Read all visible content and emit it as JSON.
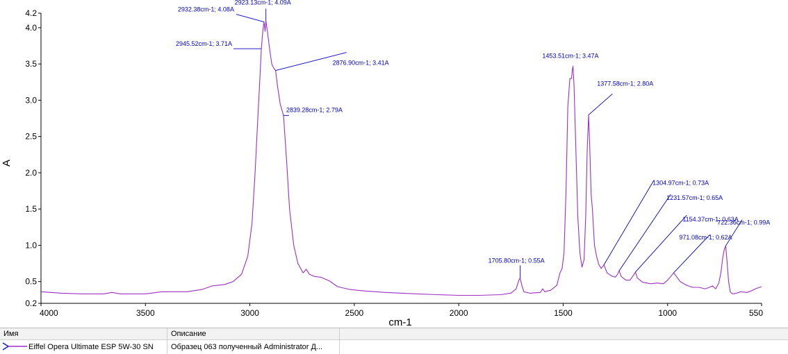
{
  "chart_data": {
    "type": "line",
    "xlabel": "cm-1",
    "ylabel": "A",
    "xlim": [
      4000,
      550
    ],
    "ylim": [
      0.2,
      4.2
    ],
    "x_ticks": [
      "4000",
      "3500",
      "3000",
      "2500",
      "2000",
      "1500",
      "1000",
      "550"
    ],
    "y_ticks": [
      "4.2",
      "4.0",
      "3.5",
      "3.0",
      "2.5",
      "2.0",
      "1.5",
      "1.0",
      "0.5",
      "0.2"
    ],
    "grid": false,
    "series": [
      {
        "name": "Eiffel Opera Ultimate ESP 5W-30 SN",
        "color": "#9d2fc4",
        "points": [
          [
            4000,
            0.36
          ],
          [
            3900,
            0.34
          ],
          [
            3800,
            0.33
          ],
          [
            3700,
            0.33
          ],
          [
            3660,
            0.35
          ],
          [
            3620,
            0.33
          ],
          [
            3500,
            0.33
          ],
          [
            3420,
            0.36
          ],
          [
            3300,
            0.36
          ],
          [
            3230,
            0.39
          ],
          [
            3180,
            0.44
          ],
          [
            3120,
            0.46
          ],
          [
            3080,
            0.5
          ],
          [
            3040,
            0.6
          ],
          [
            3010,
            0.85
          ],
          [
            2990,
            1.3
          ],
          [
            2975,
            2.0
          ],
          [
            2962,
            2.75
          ],
          [
            2952,
            3.3
          ],
          [
            2945,
            3.71
          ],
          [
            2938,
            3.95
          ],
          [
            2932,
            4.08
          ],
          [
            2927,
            3.95
          ],
          [
            2923,
            4.09
          ],
          [
            2916,
            3.95
          ],
          [
            2905,
            3.7
          ],
          [
            2895,
            3.5
          ],
          [
            2885,
            3.44
          ],
          [
            2877,
            3.41
          ],
          [
            2868,
            3.2
          ],
          [
            2855,
            2.95
          ],
          [
            2839,
            2.79
          ],
          [
            2825,
            2.2
          ],
          [
            2810,
            1.5
          ],
          [
            2790,
            1.0
          ],
          [
            2770,
            0.75
          ],
          [
            2745,
            0.62
          ],
          [
            2730,
            0.67
          ],
          [
            2715,
            0.6
          ],
          [
            2690,
            0.57
          ],
          [
            2660,
            0.56
          ],
          [
            2620,
            0.51
          ],
          [
            2580,
            0.43
          ],
          [
            2520,
            0.39
          ],
          [
            2450,
            0.37
          ],
          [
            2350,
            0.35
          ],
          [
            2200,
            0.33
          ],
          [
            2100,
            0.32
          ],
          [
            2000,
            0.31
          ],
          [
            1900,
            0.31
          ],
          [
            1800,
            0.32
          ],
          [
            1750,
            0.34
          ],
          [
            1725,
            0.4
          ],
          [
            1712,
            0.52
          ],
          [
            1706,
            0.55
          ],
          [
            1698,
            0.45
          ],
          [
            1688,
            0.36
          ],
          [
            1660,
            0.34
          ],
          [
            1610,
            0.35
          ],
          [
            1598,
            0.4
          ],
          [
            1588,
            0.36
          ],
          [
            1560,
            0.38
          ],
          [
            1530,
            0.45
          ],
          [
            1515,
            0.62
          ],
          [
            1505,
            0.68
          ],
          [
            1496,
            0.9
          ],
          [
            1486,
            1.8
          ],
          [
            1478,
            2.9
          ],
          [
            1468,
            3.3
          ],
          [
            1460,
            3.3
          ],
          [
            1456,
            3.42
          ],
          [
            1453,
            3.47
          ],
          [
            1448,
            3.2
          ],
          [
            1440,
            2.4
          ],
          [
            1430,
            1.4
          ],
          [
            1420,
            0.9
          ],
          [
            1410,
            0.7
          ],
          [
            1400,
            0.8
          ],
          [
            1392,
            1.4
          ],
          [
            1385,
            2.3
          ],
          [
            1378,
            2.8
          ],
          [
            1372,
            2.3
          ],
          [
            1366,
            1.7
          ],
          [
            1360,
            1.5
          ],
          [
            1350,
            1.0
          ],
          [
            1340,
            0.85
          ],
          [
            1330,
            0.74
          ],
          [
            1318,
            0.68
          ],
          [
            1305,
            0.73
          ],
          [
            1290,
            0.62
          ],
          [
            1270,
            0.58
          ],
          [
            1250,
            0.56
          ],
          [
            1240,
            0.6
          ],
          [
            1232,
            0.65
          ],
          [
            1222,
            0.57
          ],
          [
            1200,
            0.52
          ],
          [
            1180,
            0.52
          ],
          [
            1165,
            0.58
          ],
          [
            1154,
            0.63
          ],
          [
            1145,
            0.55
          ],
          [
            1120,
            0.49
          ],
          [
            1080,
            0.47
          ],
          [
            1050,
            0.48
          ],
          [
            1020,
            0.47
          ],
          [
            1000,
            0.52
          ],
          [
            985,
            0.57
          ],
          [
            971,
            0.62
          ],
          [
            958,
            0.57
          ],
          [
            940,
            0.5
          ],
          [
            910,
            0.45
          ],
          [
            880,
            0.42
          ],
          [
            850,
            0.42
          ],
          [
            820,
            0.4
          ],
          [
            800,
            0.42
          ],
          [
            785,
            0.44
          ],
          [
            770,
            0.4
          ],
          [
            755,
            0.48
          ],
          [
            745,
            0.62
          ],
          [
            735,
            0.85
          ],
          [
            728,
            0.95
          ],
          [
            722,
            0.99
          ],
          [
            716,
            0.8
          ],
          [
            708,
            0.5
          ],
          [
            700,
            0.36
          ],
          [
            690,
            0.33
          ],
          [
            670,
            0.34
          ],
          [
            650,
            0.36
          ],
          [
            620,
            0.35
          ],
          [
            600,
            0.37
          ],
          [
            580,
            0.4
          ],
          [
            560,
            0.42
          ],
          [
            550,
            0.43
          ]
        ]
      }
    ],
    "annotations": [
      {
        "text": "2923.13cm-1; 4.09A",
        "x": 2923.13,
        "y": 4.09
      },
      {
        "text": "2932.38cm-1; 4.08A",
        "x": 2932.38,
        "y": 4.08
      },
      {
        "text": "2945.52cm-1; 3.71A",
        "x": 2945.52,
        "y": 3.71
      },
      {
        "text": "2876.90cm-1; 3.41A",
        "x": 2876.9,
        "y": 3.41
      },
      {
        "text": "2839.28cm-1; 2.79A",
        "x": 2839.28,
        "y": 2.79
      },
      {
        "text": "1453.51cm-1; 3.47A",
        "x": 1453.51,
        "y": 3.47
      },
      {
        "text": "1377.58cm-1; 2.80A",
        "x": 1377.58,
        "y": 2.8
      },
      {
        "text": "1304.97cm-1; 0.73A",
        "x": 1304.97,
        "y": 0.73
      },
      {
        "text": "1231.57cm-1; 0.65A",
        "x": 1231.57,
        "y": 0.65
      },
      {
        "text": "1154.37cm-1; 0.63A",
        "x": 1154.37,
        "y": 0.63
      },
      {
        "text": "971.08cm-1; 0.62A",
        "x": 971.08,
        "y": 0.62
      },
      {
        "text": "722.36cm-1; 0.99A",
        "x": 722.36,
        "y": 0.99
      },
      {
        "text": "1705.80cm-1; 0.55A",
        "x": 1705.8,
        "y": 0.55
      }
    ]
  },
  "legend": {
    "col_name_header": "Имя",
    "col_desc_header": "Описание",
    "row": {
      "name": "Eiffel Opera Ultimate ESP 5W-30 SN",
      "description": "Образец 063 полученный Administrator Д...",
      "marker_icon": "arrow-marker-icon"
    }
  }
}
